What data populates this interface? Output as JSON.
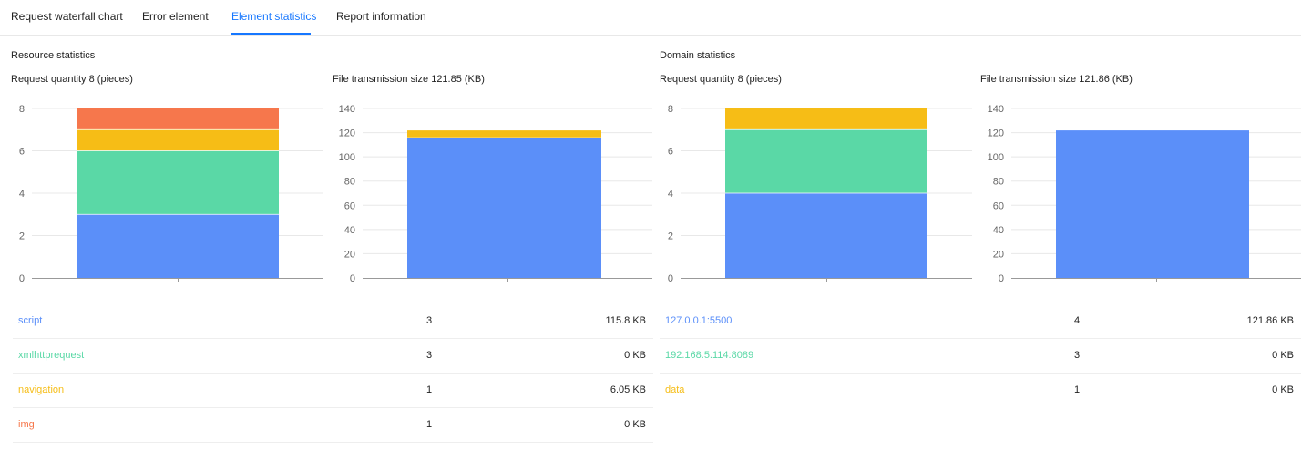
{
  "tabs": [
    {
      "label": "Request waterfall chart",
      "active": false
    },
    {
      "label": "Error element",
      "active": false
    },
    {
      "label": "Element statistics",
      "active": true
    },
    {
      "label": "Report information",
      "active": false
    }
  ],
  "colors": {
    "accent": "#1677ff",
    "blue": "#5b8ff9",
    "green": "#5ad8a6",
    "yellow": "#f6bd16",
    "orange": "#f6774c",
    "axis": "#999999",
    "grid": "#e8e8e8"
  },
  "resource": {
    "title": "Resource statistics",
    "quantity_title": "Request quantity 8 (pieces)",
    "size_title": "File transmission size 121.85 (KB)",
    "rows": [
      {
        "name": "script",
        "count": "3",
        "size": "115.8 KB",
        "color": "#5b8ff9"
      },
      {
        "name": "xmlhttprequest",
        "count": "3",
        "size": "0 KB",
        "color": "#5ad8a6"
      },
      {
        "name": "navigation",
        "count": "1",
        "size": "6.05 KB",
        "color": "#f6bd16"
      },
      {
        "name": "img",
        "count": "1",
        "size": "0 KB",
        "color": "#f6774c"
      }
    ]
  },
  "domain": {
    "title": "Domain statistics",
    "quantity_title": "Request quantity 8 (pieces)",
    "size_title": "File transmission size 121.86 (KB)",
    "rows": [
      {
        "name": "127.0.0.1:5500",
        "count": "4",
        "size": "121.86 KB",
        "color": "#5b8ff9"
      },
      {
        "name": "192.168.5.114:8089",
        "count": "3",
        "size": "0 KB",
        "color": "#5ad8a6"
      },
      {
        "name": "data",
        "count": "1",
        "size": "0 KB",
        "color": "#f6bd16"
      }
    ]
  },
  "chart_data": [
    {
      "type": "bar",
      "stacked": true,
      "title": "Request quantity 8 (pieces)",
      "ylim": [
        0,
        8
      ],
      "yticks": [
        "0",
        "2",
        "4",
        "6",
        "8"
      ],
      "grid": true,
      "series": [
        {
          "value": 3,
          "color": "#5b8ff9"
        },
        {
          "value": 3,
          "color": "#5ad8a6"
        },
        {
          "value": 1,
          "color": "#f6bd16"
        },
        {
          "value": 1,
          "color": "#f6774c"
        }
      ]
    },
    {
      "type": "bar",
      "stacked": true,
      "title": "File transmission size 121.85 (KB)",
      "ylim": [
        0,
        140
      ],
      "yticks": [
        "0",
        "20",
        "40",
        "60",
        "80",
        "100",
        "120",
        "140"
      ],
      "grid": true,
      "series": [
        {
          "value": 115.8,
          "color": "#5b8ff9"
        },
        {
          "value": 0,
          "color": "#5ad8a6"
        },
        {
          "value": 6.05,
          "color": "#f6bd16"
        },
        {
          "value": 0,
          "color": "#f6774c"
        }
      ]
    },
    {
      "type": "bar",
      "stacked": true,
      "title": "Request quantity 8 (pieces)",
      "ylim": [
        0,
        8
      ],
      "yticks": [
        "0",
        "2",
        "4",
        "6",
        "8"
      ],
      "grid": true,
      "series": [
        {
          "value": 4,
          "color": "#5b8ff9"
        },
        {
          "value": 3,
          "color": "#5ad8a6"
        },
        {
          "value": 1,
          "color": "#f6bd16"
        }
      ]
    },
    {
      "type": "bar",
      "stacked": true,
      "title": "File transmission size 121.86 (KB)",
      "ylim": [
        0,
        140
      ],
      "yticks": [
        "0",
        "20",
        "40",
        "60",
        "80",
        "100",
        "120",
        "140"
      ],
      "grid": true,
      "series": [
        {
          "value": 121.86,
          "color": "#5b8ff9"
        },
        {
          "value": 0,
          "color": "#5ad8a6"
        },
        {
          "value": 0,
          "color": "#f6bd16"
        }
      ]
    }
  ]
}
